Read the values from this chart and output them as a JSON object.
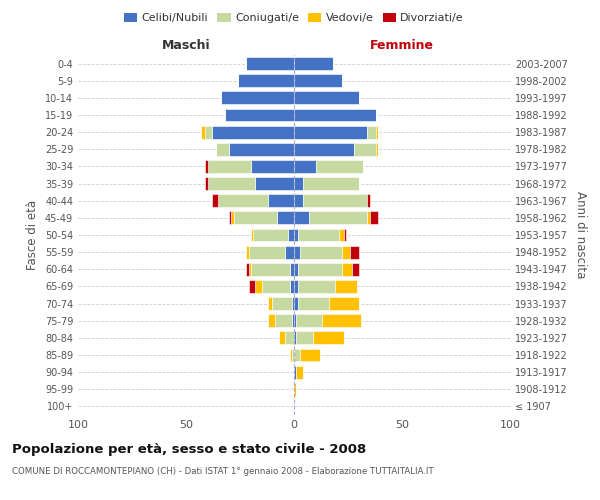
{
  "age_groups": [
    "100+",
    "95-99",
    "90-94",
    "85-89",
    "80-84",
    "75-79",
    "70-74",
    "65-69",
    "60-64",
    "55-59",
    "50-54",
    "45-49",
    "40-44",
    "35-39",
    "30-34",
    "25-29",
    "20-24",
    "15-19",
    "10-14",
    "5-9",
    "0-4"
  ],
  "birth_years": [
    "≤ 1907",
    "1908-1912",
    "1913-1917",
    "1918-1922",
    "1923-1927",
    "1928-1932",
    "1933-1937",
    "1938-1942",
    "1943-1947",
    "1948-1952",
    "1953-1957",
    "1958-1962",
    "1963-1967",
    "1968-1972",
    "1973-1977",
    "1978-1982",
    "1983-1987",
    "1988-1992",
    "1993-1997",
    "1998-2002",
    "2003-2007"
  ],
  "colors": {
    "celibi": "#4472c4",
    "coniugati": "#c5d9a0",
    "vedovi": "#ffc000",
    "divorziati": "#c0000b"
  },
  "males": {
    "celibi": [
      0,
      0,
      0,
      0,
      0,
      1,
      1,
      2,
      2,
      4,
      3,
      8,
      12,
      18,
      20,
      30,
      38,
      32,
      34,
      26,
      22
    ],
    "coniugati": [
      0,
      0,
      0,
      1,
      4,
      8,
      9,
      13,
      18,
      17,
      16,
      20,
      23,
      22,
      20,
      6,
      3,
      0,
      0,
      0,
      0
    ],
    "vedovi": [
      0,
      0,
      0,
      1,
      3,
      3,
      2,
      3,
      1,
      1,
      1,
      1,
      0,
      0,
      0,
      0,
      2,
      0,
      0,
      0,
      0
    ],
    "divorziati": [
      0,
      0,
      0,
      0,
      0,
      0,
      0,
      3,
      1,
      0,
      0,
      1,
      3,
      1,
      1,
      0,
      0,
      0,
      0,
      0,
      0
    ]
  },
  "females": {
    "celibi": [
      0,
      0,
      1,
      0,
      1,
      1,
      2,
      2,
      2,
      3,
      2,
      7,
      4,
      4,
      10,
      28,
      34,
      38,
      30,
      22,
      18
    ],
    "coniugati": [
      0,
      0,
      0,
      3,
      8,
      12,
      14,
      17,
      20,
      19,
      19,
      27,
      30,
      26,
      22,
      10,
      4,
      0,
      0,
      0,
      0
    ],
    "vedovi": [
      0,
      1,
      3,
      9,
      14,
      18,
      14,
      10,
      5,
      4,
      2,
      1,
      0,
      0,
      0,
      1,
      1,
      0,
      0,
      0,
      0
    ],
    "divorziati": [
      0,
      0,
      0,
      0,
      0,
      0,
      0,
      0,
      3,
      4,
      1,
      4,
      1,
      0,
      0,
      0,
      0,
      0,
      0,
      0,
      0
    ]
  },
  "title": "Popolazione per età, sesso e stato civile - 2008",
  "subtitle": "COMUNE DI ROCCAMONTEPIANO (CH) - Dati ISTAT 1° gennaio 2008 - Elaborazione TUTTAITALIA.IT",
  "xlabel_left": "Maschi",
  "xlabel_right": "Femmine",
  "ylabel_left": "Fasce di età",
  "ylabel_right": "Anni di nascita",
  "xlim": 100,
  "background": "#ffffff",
  "grid_color": "#d0d0d0",
  "bar_height": 0.75
}
